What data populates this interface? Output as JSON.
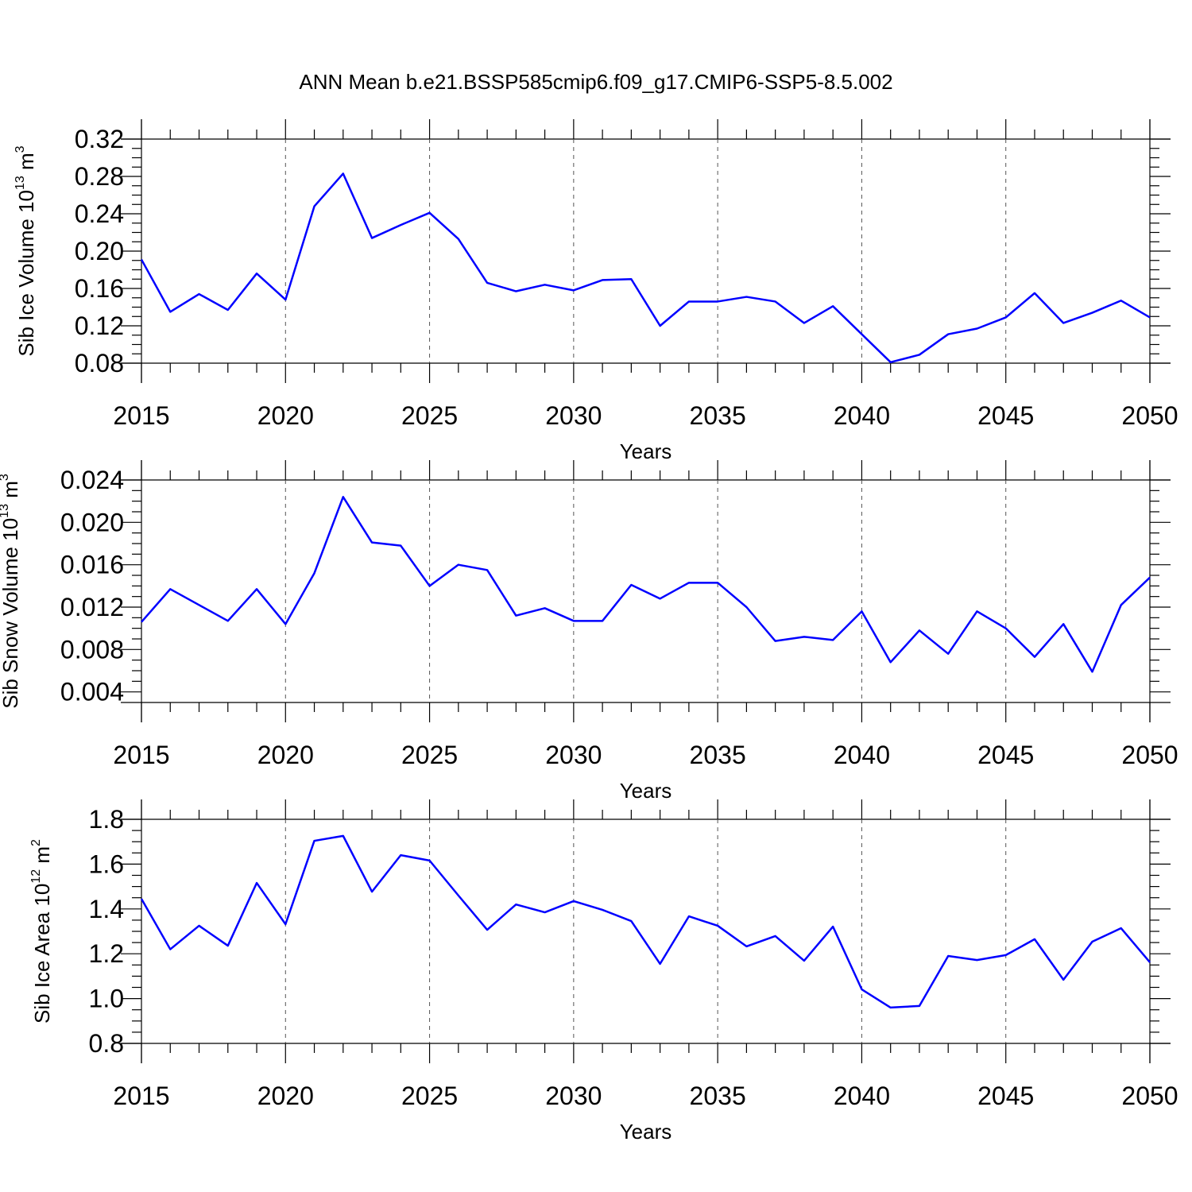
{
  "title": "ANN Mean b.e21.BSSP585cmip6.f09_g17.CMIP6-SSP5-8.5.002",
  "chart_data": [
    {
      "type": "line",
      "xlabel": "Years",
      "ylabel": [
        "Sib Ice Volume 10",
        "13",
        " m",
        "3"
      ],
      "x": [
        2015,
        2016,
        2017,
        2018,
        2019,
        2020,
        2021,
        2022,
        2023,
        2024,
        2025,
        2026,
        2027,
        2028,
        2029,
        2030,
        2031,
        2032,
        2033,
        2034,
        2035,
        2036,
        2037,
        2038,
        2039,
        2040,
        2041,
        2042,
        2043,
        2044,
        2045,
        2046,
        2047,
        2048,
        2049,
        2050
      ],
      "values": [
        0.191,
        0.135,
        0.154,
        0.137,
        0.176,
        0.148,
        0.248,
        0.283,
        0.214,
        0.228,
        0.241,
        0.213,
        0.166,
        0.157,
        0.164,
        0.158,
        0.169,
        0.17,
        0.12,
        0.146,
        0.146,
        0.151,
        0.146,
        0.123,
        0.141,
        0.111,
        0.081,
        0.089,
        0.111,
        0.117,
        0.129,
        0.155,
        0.123,
        0.134,
        0.147,
        0.129
      ],
      "color": "#0000ff",
      "xlim": [
        2015,
        2050
      ],
      "xticks": [
        2015,
        2020,
        2025,
        2030,
        2035,
        2040,
        2045,
        2050
      ],
      "ylim": [
        0.08,
        0.32
      ],
      "yticks": [
        0.08,
        0.12,
        0.16,
        {
          "value": 0.2,
          "label": "0.20"
        },
        0.24,
        0.28,
        0.32
      ],
      "grid": "x"
    },
    {
      "type": "line",
      "xlabel": "Years",
      "ylabel": [
        "Sib Snow Volume 10",
        "13",
        " m",
        "3"
      ],
      "x": [
        2015,
        2016,
        2017,
        2018,
        2019,
        2020,
        2021,
        2022,
        2023,
        2024,
        2025,
        2026,
        2027,
        2028,
        2029,
        2030,
        2031,
        2032,
        2033,
        2034,
        2035,
        2036,
        2037,
        2038,
        2039,
        2040,
        2041,
        2042,
        2043,
        2044,
        2045,
        2046,
        2047,
        2048,
        2049,
        2050
      ],
      "values": [
        0.0106,
        0.0137,
        0.0122,
        0.0107,
        0.0137,
        0.0104,
        0.0152,
        0.0224,
        0.0181,
        0.0178,
        0.014,
        0.016,
        0.0155,
        0.0112,
        0.0119,
        0.0107,
        0.0107,
        0.0141,
        0.0128,
        0.0143,
        0.0143,
        0.012,
        0.0088,
        0.0092,
        0.0089,
        0.0116,
        0.0068,
        0.0098,
        0.0076,
        0.0116,
        0.01,
        0.0073,
        0.0104,
        0.0059,
        0.0122,
        0.0148
      ],
      "color": "#0000ff",
      "xlim": [
        2015,
        2050
      ],
      "xticks": [
        2015,
        2020,
        2025,
        2030,
        2035,
        2040,
        2045,
        2050
      ],
      "ylim": [
        0.003,
        0.024
      ],
      "yticks": [
        0.004,
        0.008,
        0.012,
        0.016,
        {
          "value": 0.02,
          "label": "0.020"
        },
        0.024
      ],
      "grid": "x"
    },
    {
      "type": "line",
      "xlabel": "Years",
      "ylabel": [
        "Sib Ice Area 10",
        "12",
        " m",
        "2"
      ],
      "x": [
        2015,
        2016,
        2017,
        2018,
        2019,
        2020,
        2021,
        2022,
        2023,
        2024,
        2025,
        2026,
        2027,
        2028,
        2029,
        2030,
        2031,
        2032,
        2033,
        2034,
        2035,
        2036,
        2037,
        2038,
        2039,
        2040,
        2041,
        2042,
        2043,
        2044,
        2045,
        2046,
        2047,
        2048,
        2049,
        2050
      ],
      "values": [
        1.445,
        1.22,
        1.325,
        1.236,
        1.516,
        1.332,
        1.704,
        1.726,
        1.477,
        1.64,
        1.616,
        1.46,
        1.307,
        1.42,
        1.385,
        1.435,
        1.396,
        1.346,
        1.155,
        1.367,
        1.325,
        1.233,
        1.279,
        1.169,
        1.321,
        1.041,
        0.96,
        0.967,
        1.19,
        1.172,
        1.194,
        1.265,
        1.084,
        1.254,
        1.314,
        1.162
      ],
      "color": "#0000ff",
      "xlim": [
        2015,
        2050
      ],
      "xticks": [
        2015,
        2020,
        2025,
        2030,
        2035,
        2040,
        2045,
        2050
      ],
      "ylim": [
        0.8,
        1.8
      ],
      "yticks": [
        0.8,
        {
          "value": 1,
          "label": "1.0"
        },
        1.2,
        1.4,
        1.6,
        1.8
      ],
      "grid": "x"
    }
  ]
}
